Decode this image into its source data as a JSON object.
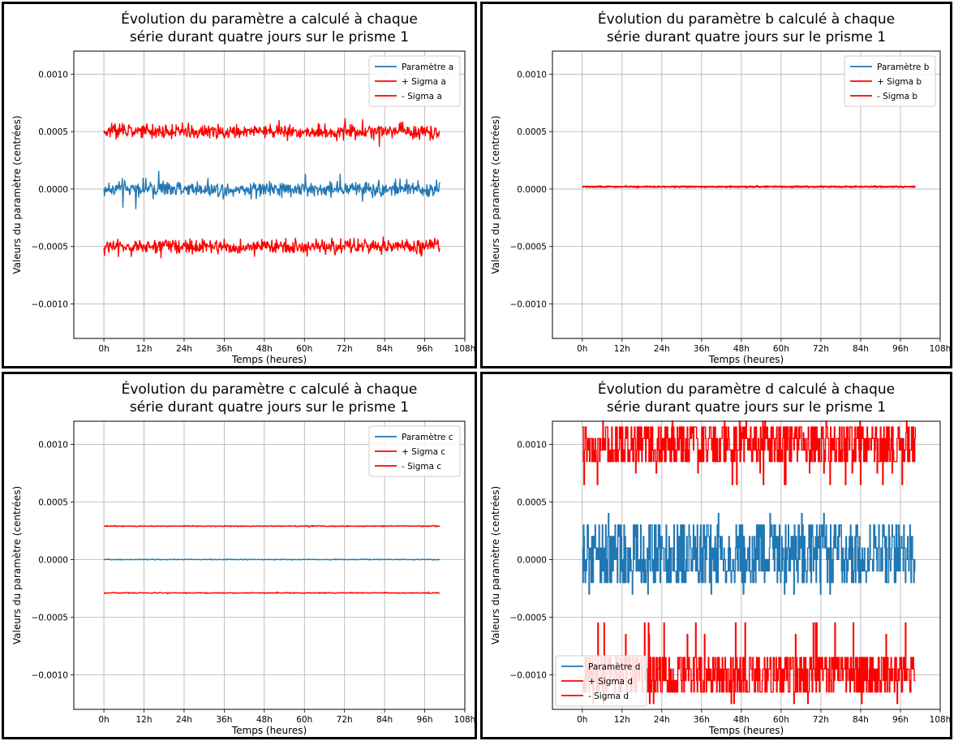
{
  "colors": {
    "param": "#1f77b4",
    "sigma": "#ff0000",
    "grid": "#b0b0b0",
    "axis": "#000000"
  },
  "chart_data": [
    {
      "type": "line",
      "title": [
        "Évolution du paramètre a calculé à chaque",
        "série durant quatre jours sur le prisme 1"
      ],
      "xlabel": "Temps (heures)",
      "ylabel": "Valeurs du paramètre (centrées)",
      "xlim": [
        -9,
        108
      ],
      "ylim": [
        -0.0013,
        0.0012
      ],
      "xticks": [
        0,
        12,
        24,
        36,
        48,
        60,
        72,
        84,
        96,
        108
      ],
      "xticklabels": [
        "0h",
        "12h",
        "24h",
        "36h",
        "48h",
        "60h",
        "72h",
        "84h",
        "96h",
        "108h"
      ],
      "yticks": [
        0.001,
        0.0005,
        0.0,
        -0.0005,
        -0.001
      ],
      "yticklabels": [
        "0.0010",
        "0.0005",
        "0.0000",
        "−0.0005",
        "−0.0010"
      ],
      "grid": true,
      "legend_position": "top-right",
      "series": [
        {
          "name": "Paramètre a",
          "color": "#1f77b4",
          "x": [
            0,
            100.5
          ],
          "center": 0.0,
          "noise_amplitude": 6e-05,
          "note": "noisy trace approx. ±0.00006 around 0"
        },
        {
          "name": "+ Sigma a",
          "color": "#ff0000",
          "x": [
            0,
            100.5
          ],
          "center": 0.0005,
          "noise_amplitude": 6e-05
        },
        {
          "name": "- Sigma a",
          "color": "#ff0000",
          "x": [
            0,
            100.5
          ],
          "center": -0.0005,
          "noise_amplitude": 6e-05
        }
      ]
    },
    {
      "type": "line",
      "title": [
        "Évolution du paramètre b calculé à chaque",
        "série durant quatre jours sur le prisme 1"
      ],
      "xlabel": "Temps (heures)",
      "ylabel": "Valeurs du paramètre (centrées)",
      "xlim": [
        -9,
        108
      ],
      "ylim": [
        -0.0013,
        0.0012
      ],
      "xticks": [
        0,
        12,
        24,
        36,
        48,
        60,
        72,
        84,
        96,
        108
      ],
      "xticklabels": [
        "0h",
        "12h",
        "24h",
        "36h",
        "48h",
        "60h",
        "72h",
        "84h",
        "96h",
        "108h"
      ],
      "yticks": [
        0.001,
        0.0005,
        0.0,
        -0.0005,
        -0.001
      ],
      "yticklabels": [
        "0.0010",
        "0.0005",
        "0.0000",
        "−0.0005",
        "−0.0010"
      ],
      "grid": true,
      "legend_position": "top-right",
      "series": [
        {
          "name": "Paramètre b",
          "color": "#1f77b4",
          "x": [
            0,
            100.5
          ],
          "center": 2e-05,
          "noise_amplitude": 5e-06
        },
        {
          "name": "+ Sigma b",
          "color": "#ff0000",
          "x": [
            0,
            100.5
          ],
          "center": 2e-05,
          "noise_amplitude": 6e-06
        },
        {
          "name": "- Sigma b",
          "color": "#ff0000",
          "x": [
            0,
            100.5
          ],
          "center": 2e-05,
          "noise_amplitude": 6e-06
        }
      ]
    },
    {
      "type": "line",
      "title": [
        "Évolution du paramètre c calculé à chaque",
        "série durant quatre jours sur le prisme 1"
      ],
      "xlabel": "Temps (heures)",
      "ylabel": "Valeurs du paramètre (centrées)",
      "xlim": [
        -9,
        108
      ],
      "ylim": [
        -0.0013,
        0.0012
      ],
      "xticks": [
        0,
        12,
        24,
        36,
        48,
        60,
        72,
        84,
        96,
        108
      ],
      "xticklabels": [
        "0h",
        "12h",
        "24h",
        "36h",
        "48h",
        "60h",
        "72h",
        "84h",
        "96h",
        "108h"
      ],
      "yticks": [
        0.001,
        0.0005,
        0.0,
        -0.0005,
        -0.001
      ],
      "yticklabels": [
        "0.0010",
        "0.0005",
        "0.0000",
        "−0.0005",
        "−0.0010"
      ],
      "grid": true,
      "legend_position": "top-right",
      "series": [
        {
          "name": "Paramètre c",
          "color": "#1f77b4",
          "x": [
            0,
            100.5
          ],
          "center": 0.0,
          "noise_amplitude": 3e-06
        },
        {
          "name": "+ Sigma c",
          "color": "#ff0000",
          "x": [
            0,
            100.5
          ],
          "center": 0.00029,
          "noise_amplitude": 4e-06
        },
        {
          "name": "- Sigma c",
          "color": "#ff0000",
          "x": [
            0,
            100.5
          ],
          "center": -0.00029,
          "noise_amplitude": 4e-06
        }
      ]
    },
    {
      "type": "line",
      "title": [
        "Évolution du paramètre d calculé à chaque",
        "série durant quatre jours sur le prisme 1"
      ],
      "xlabel": "Temps (heures)",
      "ylabel": "Valeurs du paramètre (centrées)",
      "xlim": [
        -9,
        108
      ],
      "ylim": [
        -0.0013,
        0.0012
      ],
      "xticks": [
        0,
        12,
        24,
        36,
        48,
        60,
        72,
        84,
        96,
        108
      ],
      "xticklabels": [
        "0h",
        "12h",
        "24h",
        "36h",
        "48h",
        "60h",
        "72h",
        "84h",
        "96h",
        "108h"
      ],
      "yticks": [
        0.001,
        0.0005,
        0.0,
        -0.0005,
        -0.001
      ],
      "yticklabels": [
        "0.0010",
        "0.0005",
        "0.0000",
        "−0.0005",
        "−0.0010"
      ],
      "grid": true,
      "legend_position": "bottom-left",
      "series": [
        {
          "name": "Paramètre d",
          "color": "#1f77b4",
          "x": [
            0,
            100.5
          ],
          "levels": [
            -0.0002,
            -0.0001,
            0.0,
            0.0001,
            0.0002,
            0.0003
          ],
          "min": -0.0003,
          "max": 0.0004
        },
        {
          "name": "+ Sigma d",
          "color": "#ff0000",
          "x": [
            0,
            100.5
          ],
          "levels": [
            0.00085,
            0.00095,
            0.00105,
            0.00115
          ],
          "min": 0.00065,
          "max": 0.0012
        },
        {
          "name": "- Sigma d",
          "color": "#ff0000",
          "x": [
            0,
            100.5
          ],
          "levels": [
            -0.00115,
            -0.00105,
            -0.00095,
            -0.00085
          ],
          "min": -0.00125,
          "max": -0.00055
        }
      ]
    }
  ]
}
